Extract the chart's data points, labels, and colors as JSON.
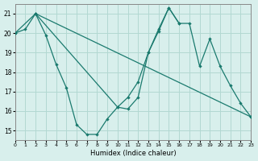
{
  "xlabel": "Humidex (Indice chaleur)",
  "xlim": [
    0,
    23
  ],
  "ylim": [
    14.5,
    21.5
  ],
  "yticks": [
    15,
    16,
    17,
    18,
    19,
    20,
    21
  ],
  "xticks": [
    0,
    1,
    2,
    3,
    4,
    5,
    6,
    7,
    8,
    9,
    10,
    11,
    12,
    13,
    14,
    15,
    16,
    17,
    18,
    19,
    20,
    21,
    22,
    23
  ],
  "bg_color": "#d8efec",
  "grid_color": "#b2d8d2",
  "line_color": "#1a7a6e",
  "line1_x": [
    0,
    1,
    2,
    3,
    4,
    5,
    6,
    7,
    8,
    9,
    10,
    11,
    12,
    13,
    14,
    15,
    16
  ],
  "line1_y": [
    20.0,
    20.2,
    21.0,
    19.9,
    18.4,
    17.2,
    15.3,
    14.8,
    14.8,
    15.6,
    16.2,
    16.7,
    17.5,
    19.0,
    20.1,
    21.3,
    20.5
  ],
  "line2_x": [
    0,
    2,
    23
  ],
  "line2_y": [
    20.0,
    21.0,
    15.7
  ],
  "line3_x": [
    2,
    10,
    11,
    12,
    13,
    14,
    15,
    16,
    17,
    18,
    19,
    20,
    21,
    22,
    23
  ],
  "line3_y": [
    21.0,
    16.2,
    16.1,
    16.7,
    19.0,
    20.2,
    21.3,
    20.5,
    20.5,
    18.3,
    19.7,
    18.3,
    17.3,
    16.4,
    15.7
  ]
}
